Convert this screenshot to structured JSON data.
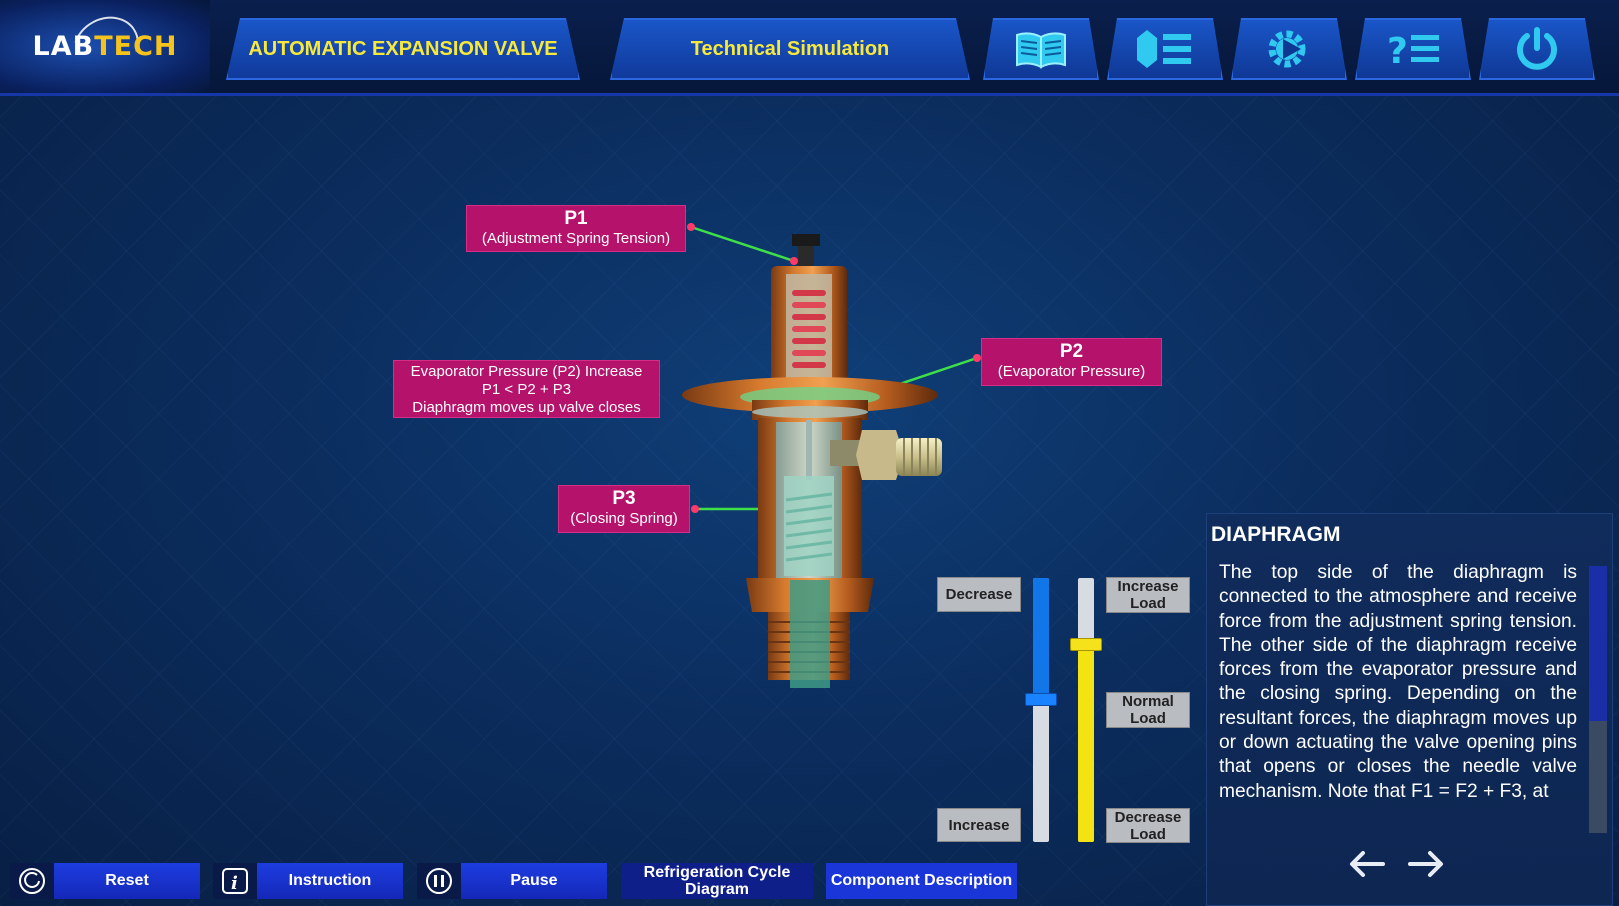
{
  "header": {
    "logo_part1": "LAB",
    "logo_part2": "TECH",
    "title": "AUTOMATIC EXPANSION VALVE",
    "mode": "Technical Simulation",
    "icons": [
      "book-icon",
      "component-list-icon",
      "simulation-gear-icon",
      "help-list-icon",
      "power-icon"
    ]
  },
  "labels": {
    "p1": {
      "name": "P1",
      "desc": "(Adjustment Spring Tension)"
    },
    "p2": {
      "name": "P2",
      "desc": "(Evaporator Pressure)"
    },
    "p3": {
      "name": "P3",
      "desc": "(Closing Spring)"
    },
    "state": {
      "line1": "Evaporator Pressure (P2) Increase",
      "line2": "P1 < P2 + P3",
      "line3": "Diaphragm moves up valve closes"
    }
  },
  "controls": {
    "pressure": {
      "top_label": "Decrease",
      "bottom_label": "Increase",
      "level": 0.46
    },
    "load": {
      "top_label": "Increase Load",
      "middle_label": "Normal Load",
      "bottom_label": "Decrease Load",
      "level": 0.75
    }
  },
  "description": {
    "title": "DIAPHRAGM",
    "text": "The top side of the diaphragm is connected to the atmosphere and receive force from the adjustment spring tension. The other side of the diaphragm receive forces from the evaporator pressure and the closing spring. Depending on the resultant forces, the diaphragm moves up or down actuating the valve opening pins that opens or closes the needle valve mechanism. Note that F1 = F2 + F3, at"
  },
  "toolbar": {
    "reset": "Reset",
    "instruction": "Instruction",
    "pause": "Pause",
    "cycle_diagram": "Refrigeration Cycle Diagram",
    "component_description": "Component Description"
  },
  "colors": {
    "accent_blue": "#1a56c8",
    "label_magenta": "#b4126b",
    "title_yellow": "#f7e83a",
    "pressure_blue": "#1176e8",
    "load_yellow": "#f4e312"
  }
}
